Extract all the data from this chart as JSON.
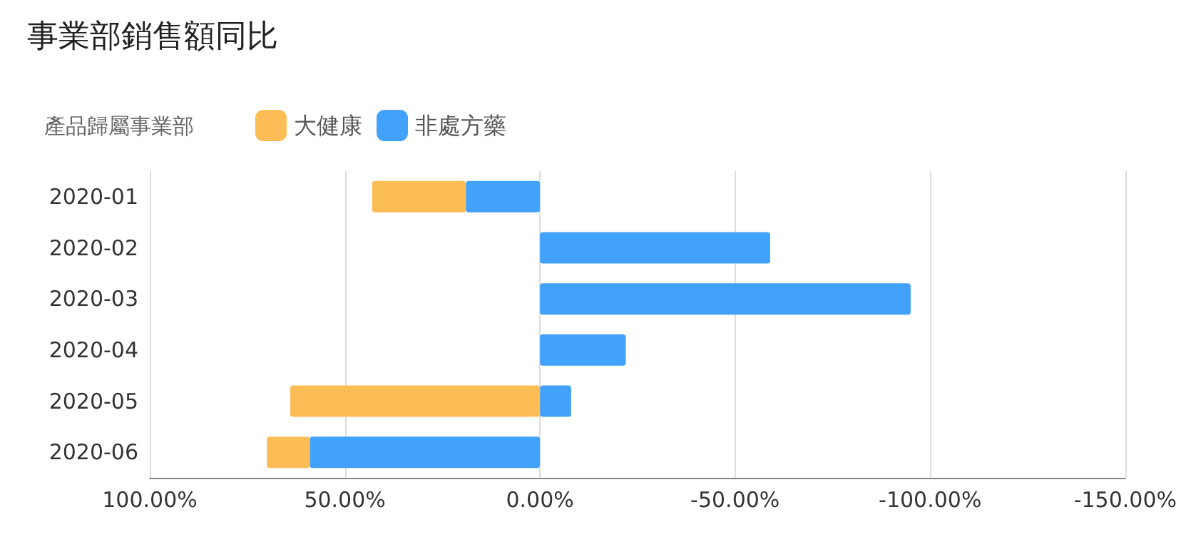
{
  "chart_data": {
    "type": "bar",
    "orientation": "horizontal",
    "stacked": true,
    "title": "事業部銷售額同比",
    "legend_title": "產品歸屬事業部",
    "legend": "top left",
    "grid": "x",
    "categories": [
      "2020-01",
      "2020-02",
      "2020-03",
      "2020-04",
      "2020-05",
      "2020-06"
    ],
    "series": [
      {
        "name": "非處方藥",
        "color": "#42a1fa",
        "values": [
          19,
          -59,
          -95,
          -22,
          -8,
          59
        ]
      },
      {
        "name": "大健康",
        "color": "#fdbd56",
        "values": [
          24,
          null,
          null,
          null,
          64,
          11
        ]
      }
    ],
    "xlim": [
      100,
      -150
    ],
    "xticks": [
      {
        "value": 100,
        "label": "100.00%"
      },
      {
        "value": 50,
        "label": "50.00%"
      },
      {
        "value": 0,
        "label": "0.00%"
      },
      {
        "value": -50,
        "label": "-50.00%"
      },
      {
        "value": -100,
        "label": "-100.00%"
      },
      {
        "value": -150,
        "label": "-150.00%"
      }
    ]
  }
}
